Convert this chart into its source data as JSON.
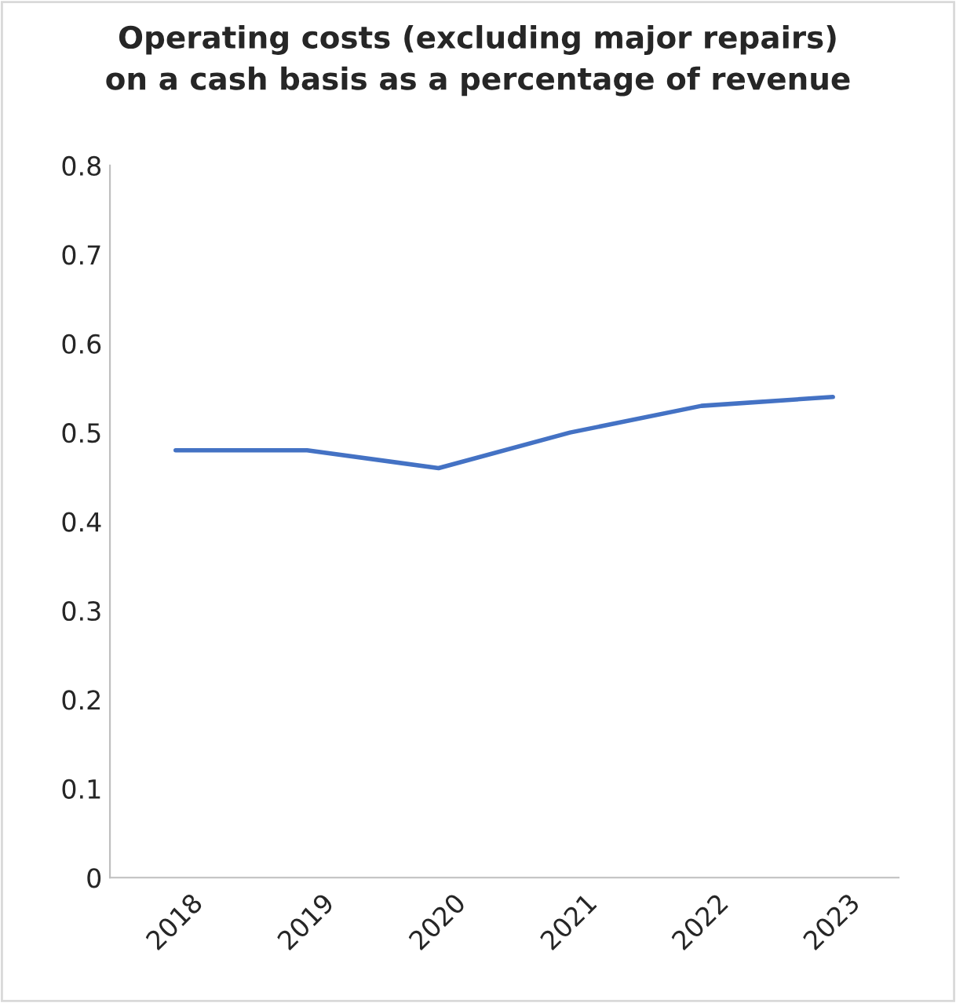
{
  "chart_data": {
    "type": "line",
    "title": "Operating costs (excluding major repairs)\non a cash basis as a percentage of revenue",
    "categories": [
      "2018",
      "2019",
      "2020",
      "2021",
      "2022",
      "2023"
    ],
    "series": [
      {
        "color": "#4472c4",
        "values": [
          0.48,
          0.48,
          0.46,
          0.5,
          0.53,
          0.54
        ]
      }
    ],
    "ylim": [
      0,
      0.8
    ],
    "yticks": [
      {
        "value": 0,
        "label": "0"
      },
      0.1,
      0.2,
      0.3,
      0.4,
      0.5,
      0.6,
      0.7,
      0.8
    ],
    "grid": false,
    "legend": false,
    "marker": "none",
    "line_style": "solid"
  }
}
